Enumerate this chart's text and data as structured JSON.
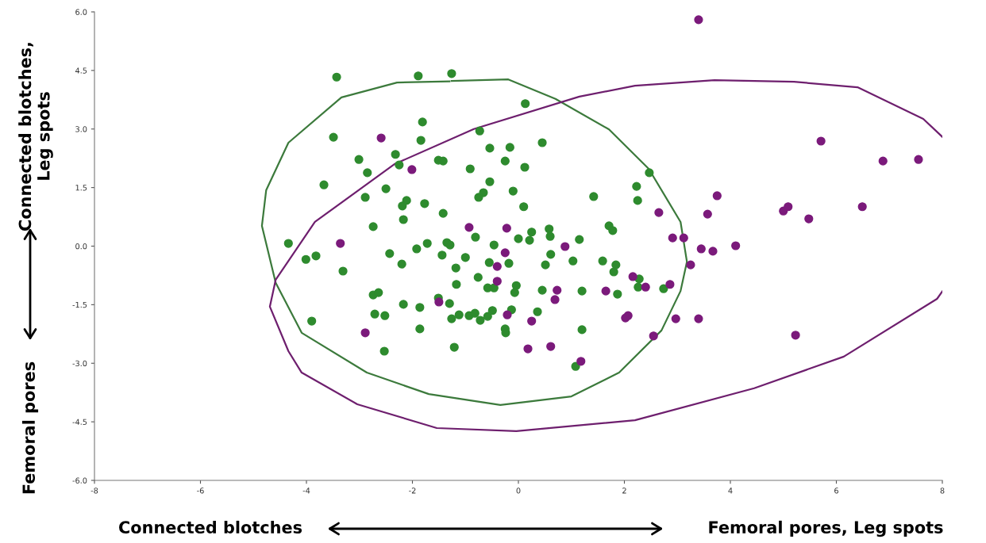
{
  "chart_data": {
    "type": "scatter",
    "xlabel": "Connected blotches",
    "ylabel": "Connected blotches,\nLeg spots",
    "annotations": [
      "Femoral pores, Leg spots",
      "Femoral pores"
    ],
    "xlim": [
      -8,
      8
    ],
    "xticks": [
      -8,
      -6,
      -4,
      -2,
      0,
      2,
      4,
      6,
      8
    ],
    "ylim": [
      -6,
      6
    ],
    "yticks": [
      {
        "value": -6,
        "label": "-6.0"
      },
      {
        "value": -4.5,
        "label": "-4.5"
      },
      {
        "value": -3,
        "label": "-3.0"
      },
      {
        "value": -1.5,
        "label": "-1.5"
      },
      {
        "value": 0,
        "label": "0.0"
      },
      {
        "value": 1.5,
        "label": "1.5"
      },
      {
        "value": 3,
        "label": "3.0"
      },
      {
        "value": 4.5,
        "label": "4.5"
      },
      {
        "value": 6,
        "label": "6.0"
      }
    ],
    "grid": false,
    "legend": false,
    "marker": "circle",
    "series": [
      {
        "type": "line",
        "color": "#3c7a3c",
        "marker": "none",
        "line_style": "solid",
        "x": [
          -1.26,
          -0.19,
          0.7,
          1.71,
          2.46,
          3.06,
          3.18,
          3.06,
          2.7,
          1.9,
          1.0,
          -0.34,
          -1.69,
          -2.86,
          -4.09,
          -4.58,
          -4.84,
          -4.76,
          -4.34,
          -3.34,
          -2.29,
          -1.3
        ],
        "values": [
          4.23,
          4.27,
          3.77,
          2.99,
          1.98,
          0.62,
          -0.4,
          -1.15,
          -2.16,
          -3.24,
          -3.85,
          -4.07,
          -3.79,
          -3.24,
          -2.22,
          -0.94,
          0.52,
          1.43,
          2.65,
          3.81,
          4.19,
          4.22
        ]
      },
      {
        "type": "line",
        "color": "#6e1f6e",
        "marker": "none",
        "line_style": "solid",
        "x": [
          8.0,
          7.9,
          6.14,
          4.45,
          2.2,
          -0.04,
          -1.54,
          -3.04,
          -4.09,
          -4.34,
          -4.69,
          -4.58,
          -3.84,
          -2.34,
          -0.84,
          1.15,
          2.2,
          3.7,
          5.2,
          6.4,
          7.64,
          8.0
        ],
        "values": [
          -1.16,
          -1.35,
          -2.83,
          -3.64,
          -4.46,
          -4.74,
          -4.66,
          -4.05,
          -3.24,
          -2.69,
          -1.55,
          -0.86,
          0.62,
          2.1,
          3.0,
          3.83,
          4.11,
          4.25,
          4.21,
          4.07,
          3.26,
          2.8
        ]
      },
      {
        "color": "#2e8b2e",
        "x": [
          -3.43,
          -1.89,
          -1.26,
          0.13,
          -1.81,
          -3.49,
          -1.84,
          -0.73,
          -0.54,
          -0.16,
          0.45,
          -2.32,
          -3.01,
          -2.25,
          -2.85,
          -1.51,
          -1.42,
          -0.91,
          -0.25,
          0.12,
          -3.67,
          -0.54,
          -2.5,
          -0.66,
          -0.75,
          -0.1,
          -2.89,
          -2.11,
          -2.19,
          -1.77,
          0.1,
          -1.42,
          -2.17,
          -2.74,
          -4.34,
          -4.01,
          -3.82,
          -3.31,
          -2.43,
          -2.2,
          -1.92,
          -1.72,
          -1.35,
          -1.29,
          -1.44,
          -1.0,
          -0.81,
          -1.18,
          -0.46,
          -0.55,
          -0.18,
          0.0,
          0.21,
          0.25,
          0.58,
          0.6,
          0.61,
          0.51,
          1.03,
          1.15,
          -0.76,
          -1.17,
          -0.58,
          -0.46,
          -0.04,
          -0.07,
          0.45,
          -2.74,
          -2.64,
          -2.17,
          -1.86,
          -1.51,
          -1.3,
          -2.71,
          -2.52,
          -1.12,
          -1.26,
          -0.93,
          -0.82,
          -0.72,
          -0.58,
          -0.49,
          -0.13,
          0.36,
          -3.9,
          -1.86,
          -0.25,
          -0.24,
          -2.53,
          -1.21,
          1.08,
          1.71,
          1.78,
          1.59,
          1.84,
          1.8,
          2.28,
          2.26,
          1.2,
          1.87,
          2.74,
          1.2,
          2.47,
          2.23,
          2.25,
          1.42
        ],
        "values": [
          4.33,
          4.36,
          4.42,
          3.65,
          3.18,
          2.79,
          2.71,
          2.95,
          2.51,
          2.53,
          2.65,
          2.35,
          2.22,
          2.08,
          1.88,
          2.2,
          2.18,
          1.98,
          2.18,
          2.02,
          1.57,
          1.65,
          1.47,
          1.37,
          1.25,
          1.41,
          1.25,
          1.17,
          1.03,
          1.09,
          1.01,
          0.84,
          0.68,
          0.5,
          0.07,
          -0.34,
          -0.25,
          -0.64,
          -0.19,
          -0.46,
          -0.07,
          0.07,
          0.09,
          0.03,
          -0.23,
          -0.29,
          0.23,
          -0.56,
          0.03,
          -0.42,
          -0.44,
          0.19,
          0.15,
          0.36,
          0.44,
          0.25,
          -0.21,
          -0.48,
          -0.38,
          0.17,
          -0.8,
          -0.98,
          -1.07,
          -1.07,
          -1.01,
          -1.19,
          -1.13,
          -1.25,
          -1.19,
          -1.49,
          -1.57,
          -1.33,
          -1.47,
          -1.74,
          -1.78,
          -1.76,
          -1.86,
          -1.78,
          -1.72,
          -1.9,
          -1.8,
          -1.65,
          -1.63,
          -1.68,
          -1.92,
          -2.12,
          -2.12,
          -2.22,
          -2.69,
          -2.59,
          -3.08,
          0.52,
          0.4,
          -0.38,
          -0.48,
          -0.66,
          -0.84,
          -1.05,
          -1.15,
          -1.23,
          -1.09,
          -2.14,
          1.88,
          1.53,
          1.17,
          1.27
        ]
      },
      {
        "color": "#7b1a7b",
        "x": [
          3.4,
          -2.59,
          -2.01,
          -0.93,
          -0.22,
          -3.36,
          -0.25,
          0.88,
          -0.4,
          -0.4,
          0.73,
          0.69,
          -1.5,
          -0.21,
          0.25,
          -2.89,
          0.18,
          0.61,
          3.75,
          3.57,
          2.65,
          5.0,
          5.09,
          2.91,
          3.12,
          3.45,
          3.67,
          4.1,
          3.25,
          2.16,
          2.4,
          2.86,
          1.65,
          2.07,
          2.02,
          2.97,
          3.4,
          2.55,
          1.18,
          5.71,
          6.88,
          7.55,
          5.48,
          6.49,
          5.23
        ],
        "values": [
          5.8,
          2.77,
          1.96,
          0.48,
          0.46,
          0.07,
          -0.17,
          -0.01,
          -0.52,
          -0.9,
          -1.13,
          -1.37,
          -1.43,
          -1.76,
          -1.92,
          -2.22,
          -2.63,
          -2.57,
          1.29,
          0.82,
          0.86,
          0.9,
          1.01,
          0.21,
          0.21,
          -0.07,
          -0.13,
          0.01,
          -0.48,
          -0.78,
          -1.05,
          -0.98,
          -1.15,
          -1.78,
          -1.84,
          -1.86,
          -1.86,
          -2.3,
          -2.95,
          2.69,
          2.18,
          2.22,
          0.7,
          1.01,
          -2.28
        ]
      }
    ]
  }
}
